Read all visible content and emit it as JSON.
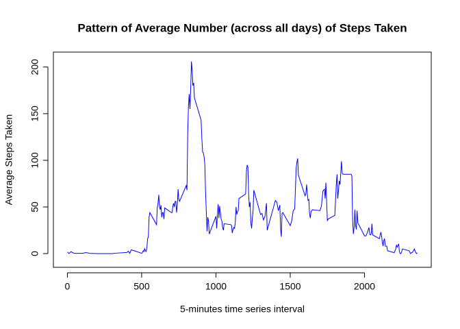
{
  "chart_data": {
    "type": "line",
    "title": "Pattern of Average Number (across all days) of Steps Taken",
    "x_label": "5-minutes time series interval",
    "y_label": "Average Steps Taken",
    "xlim": [
      -94.2,
      2449.2
    ],
    "ylim": [
      -14.7,
      216
    ],
    "xticks": [
      0,
      500,
      1000,
      1500,
      2000
    ],
    "yticks": [
      0,
      50,
      100,
      150,
      200
    ],
    "series": [
      {
        "color": "#0000ff",
        "x": [
          0,
          10,
          25,
          35,
          50,
          100,
          125,
          150,
          200,
          230,
          300,
          330,
          400,
          410,
          420,
          430,
          440,
          450,
          500,
          505,
          510,
          515,
          520,
          525,
          530,
          535,
          540,
          545,
          550,
          555,
          600,
          605,
          610,
          615,
          620,
          625,
          630,
          635,
          640,
          645,
          650,
          655,
          700,
          705,
          710,
          715,
          720,
          725,
          730,
          735,
          740,
          745,
          750,
          755,
          800,
          805,
          810,
          815,
          820,
          825,
          830,
          835,
          840,
          845,
          850,
          855,
          900,
          905,
          910,
          915,
          920,
          925,
          930,
          935,
          940,
          945,
          950,
          955,
          1000,
          1005,
          1010,
          1015,
          1020,
          1025,
          1030,
          1035,
          1040,
          1045,
          1050,
          1055,
          1100,
          1105,
          1110,
          1115,
          1120,
          1125,
          1130,
          1135,
          1140,
          1145,
          1150,
          1155,
          1200,
          1205,
          1210,
          1215,
          1220,
          1225,
          1230,
          1235,
          1240,
          1245,
          1250,
          1255,
          1300,
          1310,
          1320,
          1330,
          1340,
          1345,
          1400,
          1410,
          1420,
          1430,
          1435,
          1440,
          1445,
          1450,
          1500,
          1510,
          1520,
          1530,
          1540,
          1545,
          1550,
          1555,
          1600,
          1605,
          1610,
          1615,
          1620,
          1625,
          1630,
          1635,
          1640,
          1650,
          1700,
          1710,
          1720,
          1730,
          1735,
          1740,
          1745,
          1750,
          1755,
          1800,
          1810,
          1815,
          1820,
          1825,
          1830,
          1835,
          1840,
          1845,
          1850,
          1855,
          1900,
          1910,
          1915,
          1920,
          1925,
          1930,
          1935,
          1940,
          1945,
          1950,
          1955,
          2000,
          2010,
          2020,
          2030,
          2035,
          2040,
          2045,
          2050,
          2055,
          2100,
          2110,
          2115,
          2120,
          2125,
          2130,
          2135,
          2140,
          2145,
          2150,
          2155,
          2200,
          2210,
          2215,
          2220,
          2225,
          2230,
          2235,
          2240,
          2245,
          2250,
          2255,
          2300,
          2310,
          2315,
          2320,
          2325,
          2330,
          2335,
          2340,
          2345,
          2350,
          2355
        ],
        "values": [
          1.7,
          0.1,
          2.1,
          0.9,
          0.3,
          0.3,
          1.1,
          0.3,
          0,
          0,
          0,
          0.5,
          1.2,
          2.6,
          0.3,
          4.1,
          3.5,
          3.1,
          0.3,
          1.1,
          3.0,
          2.2,
          5.3,
          3.0,
          2.2,
          6.2,
          16,
          18,
          39,
          44,
          31,
          49,
          54,
          63,
          50,
          47,
          52,
          39,
          44,
          44,
          37,
          49,
          44,
          44,
          51,
          54,
          50,
          56,
          56,
          44,
          52,
          69,
          58,
          56,
          73,
          68,
          129,
          158,
          171,
          155,
          177,
          206,
          196,
          180,
          183,
          167,
          143,
          124,
          109,
          108,
          104,
          96,
          66,
          45,
          24,
          39,
          35,
          21,
          40,
          27,
          42,
          53,
          38,
          51,
          44,
          37,
          35,
          28,
          25,
          32,
          31,
          30,
          22,
          26,
          28,
          27,
          33,
          50,
          42,
          45,
          46,
          59,
          64,
          88,
          95,
          93,
          64,
          50,
          55,
          33,
          27,
          38,
          46,
          68,
          42,
          43,
          36,
          40,
          54,
          25,
          57,
          55,
          46,
          52,
          27,
          18,
          43,
          44,
          30,
          35,
          46,
          48,
          92,
          98,
          102,
          84,
          62,
          64,
          74,
          64,
          57,
          58,
          43,
          38,
          45,
          47,
          46,
          51,
          67,
          69,
          59,
          76,
          56,
          35,
          37,
          41,
          74,
          85,
          59,
          68,
          78,
          74,
          86,
          99,
          86,
          85,
          85,
          85,
          83,
          36,
          21,
          28,
          47,
          30,
          26,
          46,
          33,
          19,
          19,
          23,
          28,
          21,
          20,
          21,
          32,
          20,
          16,
          23,
          19,
          12,
          8,
          14,
          16,
          8,
          8,
          8,
          3,
          1,
          5,
          9,
          7,
          9,
          10,
          2,
          0,
          0,
          2,
          5,
          3,
          0,
          1,
          1,
          2,
          3,
          5,
          3,
          1,
          0,
          1
        ]
      }
    ]
  }
}
